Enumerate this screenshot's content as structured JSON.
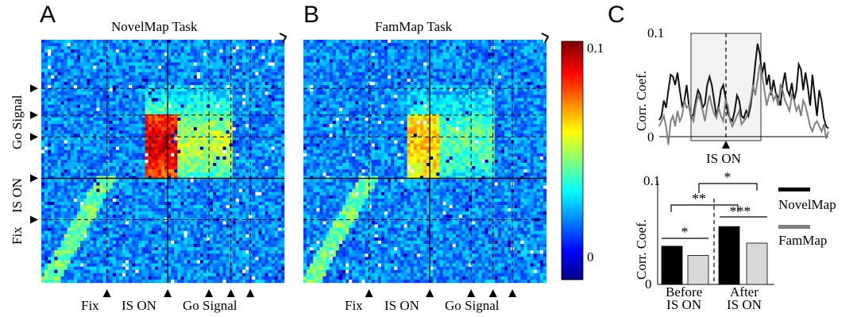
{
  "panels": {
    "a": {
      "letter": "A",
      "title": "NovelMap Task"
    },
    "b": {
      "letter": "B",
      "title": "FamMap Task"
    },
    "c": {
      "letter": "C"
    }
  },
  "heatmap_ticks": {
    "x": [
      "Fix",
      "IS ON",
      "Go Signal"
    ],
    "y": [
      "Go Signal",
      "IS ON",
      "Fix"
    ]
  },
  "colorbar": {
    "max_label": "0.1",
    "min_label": "0"
  },
  "chart_data": [
    {
      "type": "heatmap",
      "title": "NovelMap Task",
      "x_events": [
        "Fix",
        "IS ON",
        "Go Signal"
      ],
      "y_events": [
        "Go Signal",
        "IS ON",
        "Fix"
      ],
      "value_range": [
        0,
        0.1
      ]
    },
    {
      "type": "heatmap",
      "title": "FamMap Task",
      "x_events": [
        "Fix",
        "IS ON",
        "Go Signal"
      ],
      "value_range": [
        0,
        0.1
      ]
    },
    {
      "type": "line",
      "ylabel": "Corr. Coef.",
      "yticks": [
        "0",
        "0.1"
      ],
      "ylim": [
        0,
        0.1
      ],
      "xlabel": "IS ON",
      "series": [
        {
          "color": "#111111",
          "values": [
            0.016,
            0.02,
            0.035,
            0.028,
            0.045,
            0.06,
            0.058,
            0.05,
            0.062,
            0.045,
            0.03,
            0.035,
            0.05,
            0.03,
            0.018,
            0.022,
            0.035,
            0.045,
            0.04,
            0.028,
            0.032,
            0.05,
            0.058,
            0.05,
            0.035,
            0.02,
            0.03,
            0.045,
            0.05,
            0.038,
            0.022,
            0.018,
            0.015,
            0.025,
            0.04,
            0.035,
            0.02,
            0.018,
            0.025,
            0.02,
            0.03,
            0.048,
            0.07,
            0.09,
            0.08,
            0.06,
            0.072,
            0.05,
            0.06,
            0.04,
            0.055,
            0.042,
            0.038,
            0.03,
            0.05,
            0.062,
            0.045,
            0.04,
            0.052,
            0.035,
            0.045,
            0.07,
            0.065,
            0.045,
            0.062,
            0.048,
            0.03,
            0.06,
            0.04,
            0.02,
            0.045,
            0.035,
            0.018,
            0.01,
            0.008
          ]
        },
        {
          "color": "#808080",
          "values": [
            0.01,
            0.015,
            0.02,
            0.01,
            -0.008,
            0.015,
            0.02,
            0.01,
            0.025,
            0.015,
            0.02,
            0.035,
            0.028,
            0.03,
            0.02,
            0.015,
            0.03,
            0.04,
            0.035,
            0.025,
            0.015,
            0.03,
            0.04,
            0.03,
            0.022,
            0.018,
            0.028,
            0.02,
            0.015,
            0.035,
            0.03,
            0.015,
            0.01,
            0.015,
            0.02,
            0.025,
            0.012,
            0.015,
            0.018,
            0.025,
            0.035,
            0.05,
            0.04,
            0.055,
            0.07,
            0.06,
            0.045,
            0.03,
            0.04,
            0.045,
            0.035,
            0.04,
            0.03,
            0.05,
            0.045,
            0.035,
            0.03,
            0.025,
            0.04,
            0.035,
            0.025,
            0.03,
            0.02,
            0.035,
            0.03,
            0.02,
            0.01,
            0.005,
            0.012,
            0.015,
            0.01,
            0.005,
            0.012,
            -0.002,
            0.005
          ]
        }
      ]
    },
    {
      "type": "bar",
      "ylabel": "Corr. Coef.",
      "yticks": [
        "0",
        "0.1"
      ],
      "ylim": [
        0,
        0.1
      ],
      "categories": [
        "Before\nIS ON",
        "After\nIS ON"
      ],
      "series": [
        {
          "name": "NovelMap",
          "color": "#000000",
          "values": [
            0.037,
            0.056
          ]
        },
        {
          "name": "FamMap",
          "color": "#d9d9d9",
          "values": [
            0.028,
            0.04
          ]
        }
      ],
      "significance": [
        "*",
        "**",
        "*",
        "***"
      ],
      "legend": [
        "NovelMap",
        "FamMap"
      ]
    }
  ]
}
